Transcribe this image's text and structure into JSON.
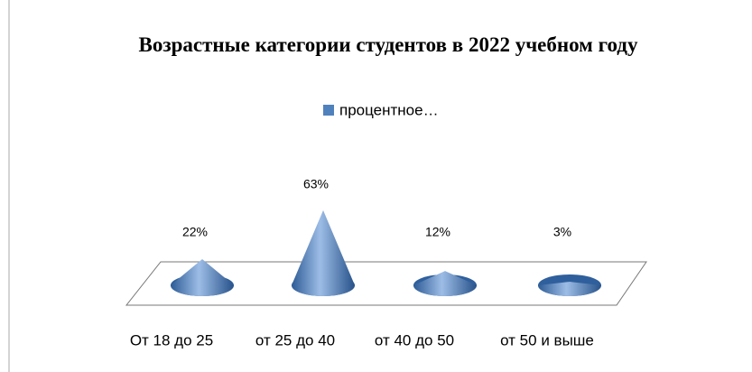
{
  "chart_data": {
    "type": "cone",
    "title": "Возрастные категории студентов в 2022 учебном году",
    "categories": [
      "От 18 до 25",
      "от 25 до 40",
      "от 40 до 50",
      "от 50 и выше"
    ],
    "series": [
      {
        "name": "процентное…",
        "color": "#4f81bd",
        "values": [
          22,
          63,
          12,
          3
        ],
        "value_labels": [
          "22%",
          "63%",
          "12%",
          "3%"
        ]
      }
    ]
  }
}
